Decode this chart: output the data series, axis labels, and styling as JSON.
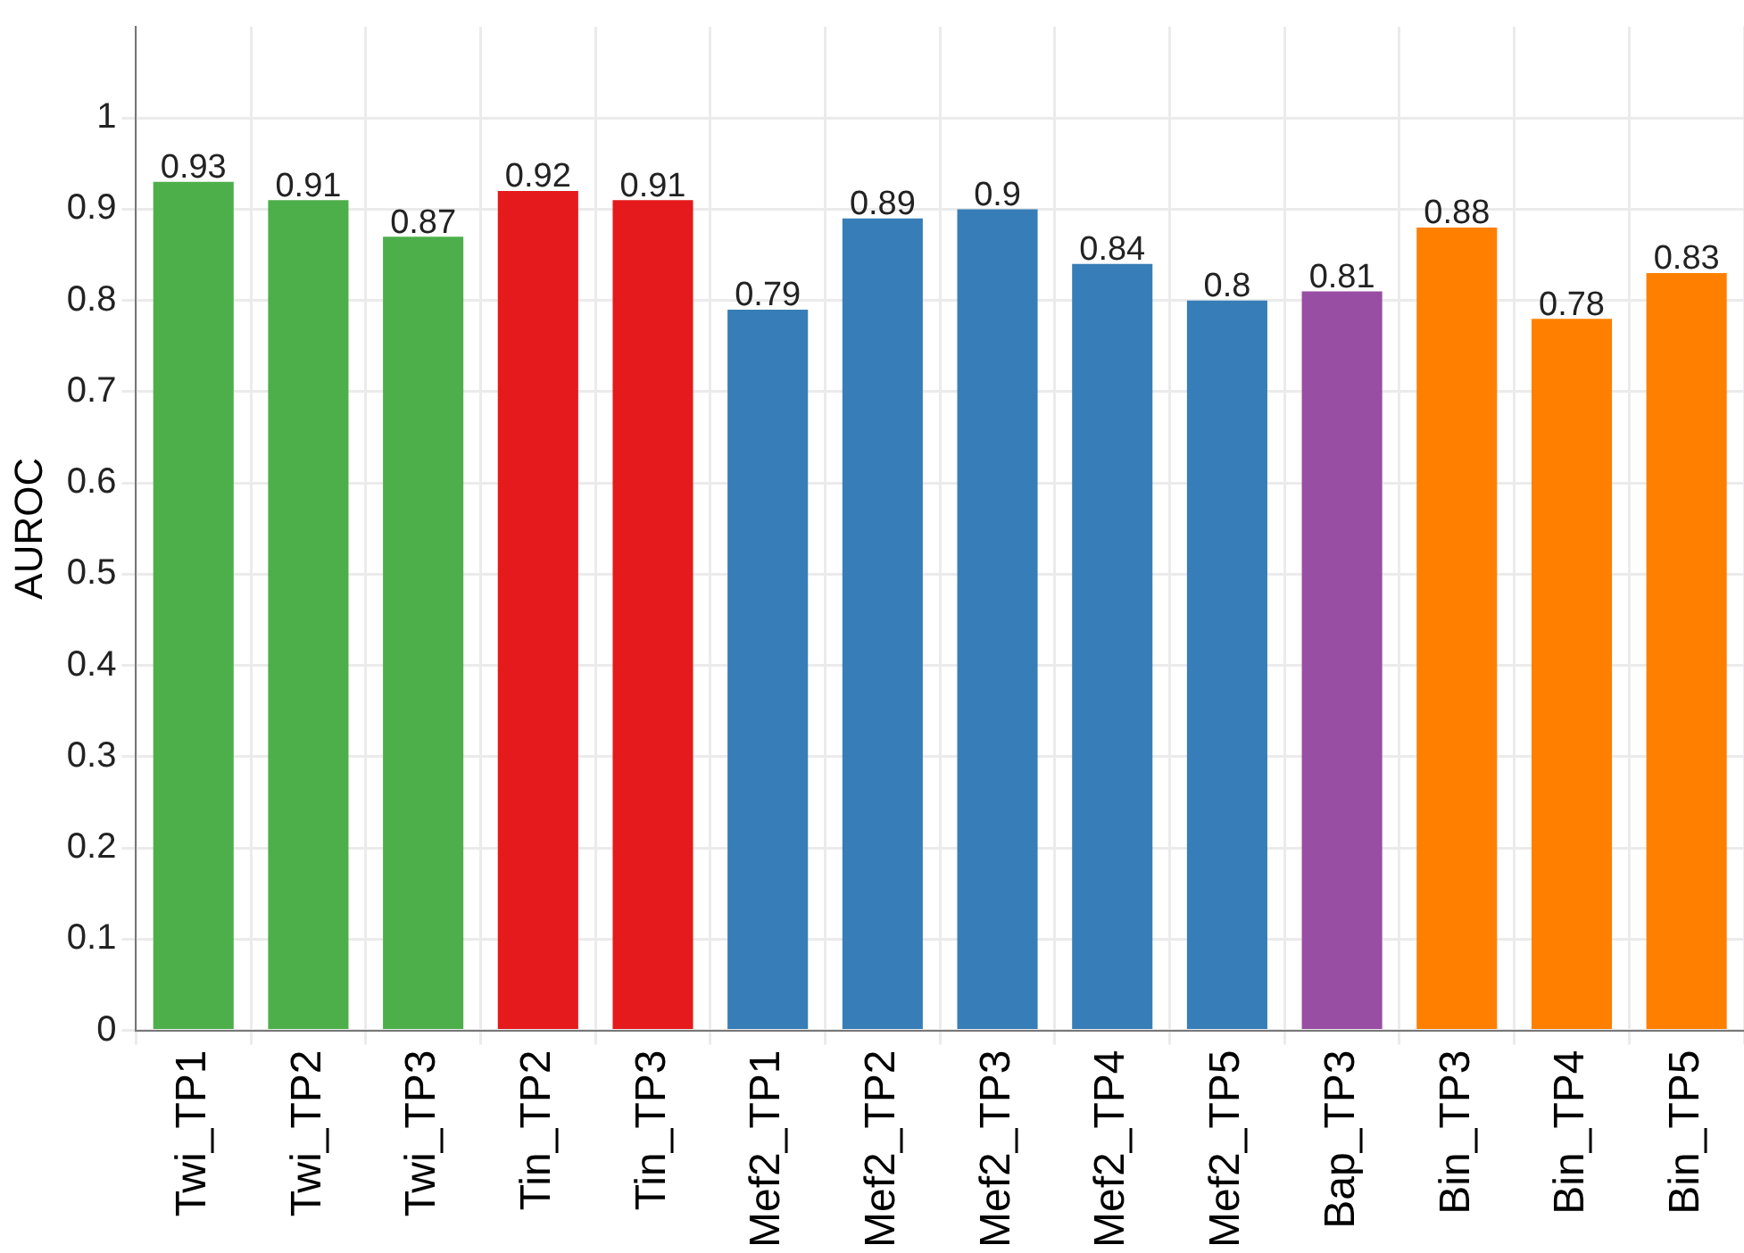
{
  "chart_data": {
    "type": "bar",
    "ylabel": "AUROC",
    "categories": [
      "Twi_TP1",
      "Twi_TP2",
      "Twi_TP3",
      "Tin_TP2",
      "Tin_TP3",
      "Mef2_TP1",
      "Mef2_TP2",
      "Mef2_TP3",
      "Mef2_TP4",
      "Mef2_TP5",
      "Bap_TP3",
      "Bin_TP3",
      "Bin_TP4",
      "Bin_TP5"
    ],
    "values": [
      0.93,
      0.91,
      0.87,
      0.92,
      0.91,
      0.79,
      0.89,
      0.9,
      0.84,
      0.8,
      0.81,
      0.88,
      0.78,
      0.83
    ],
    "colors": [
      "#4daf4a",
      "#4daf4a",
      "#4daf4a",
      "#e41a1c",
      "#e41a1c",
      "#377eb8",
      "#377eb8",
      "#377eb8",
      "#377eb8",
      "#377eb8",
      "#984ea3",
      "#ff7f00",
      "#ff7f00",
      "#ff7f00"
    ],
    "ylim": [
      0,
      1.1
    ],
    "yticks": [
      0,
      0.1,
      0.2,
      0.3,
      0.4,
      0.5,
      0.6,
      0.7,
      0.8,
      0.9,
      1
    ],
    "grid": true,
    "data_labels": true,
    "legend": false
  }
}
